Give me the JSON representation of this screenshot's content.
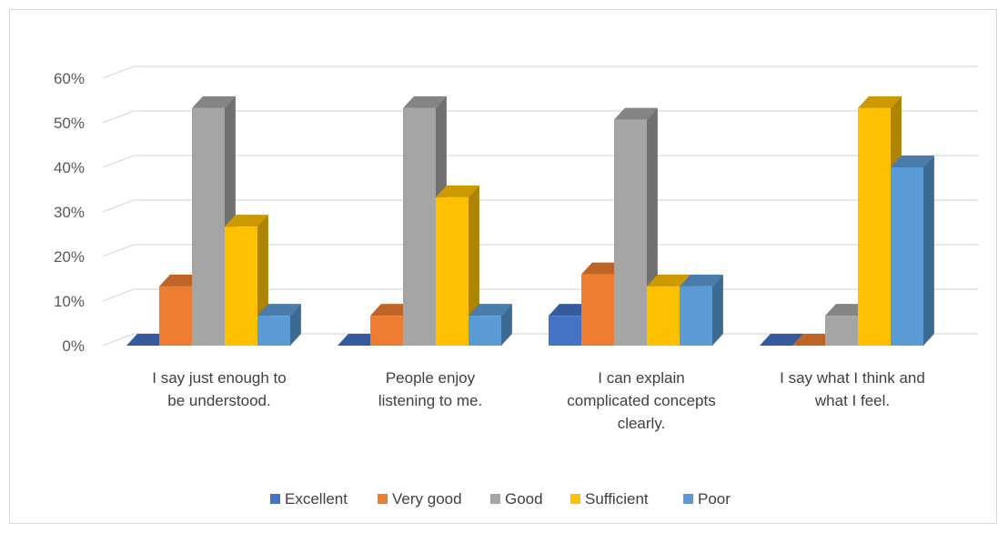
{
  "chart_data": {
    "type": "bar",
    "title": "",
    "xlabel": "",
    "ylabel": "",
    "ylim": [
      0,
      0.6
    ],
    "y_ticks": [
      "0%",
      "10%",
      "20%",
      "30%",
      "40%",
      "50%",
      "60%"
    ],
    "grid": true,
    "legend_position": "bottom",
    "categories": [
      [
        "I say just enough to",
        "be understood."
      ],
      [
        "People enjoy",
        "listening to me."
      ],
      [
        "I can explain",
        "complicated concepts",
        "clearly."
      ],
      [
        "I say what I think and",
        "what I feel."
      ]
    ],
    "series": [
      {
        "name": "Excellent",
        "color": "#4472c4",
        "values": [
          0,
          0,
          0.067,
          0
        ]
      },
      {
        "name": "Very good",
        "color": "#ed7d31",
        "values": [
          0.133,
          0.067,
          0.16,
          0
        ]
      },
      {
        "name": "Good",
        "color": "#a5a5a5",
        "values": [
          0.533,
          0.533,
          0.507,
          0.067
        ]
      },
      {
        "name": "Sufficient",
        "color": "#ffc000",
        "values": [
          0.267,
          0.333,
          0.133,
          0.533
        ]
      },
      {
        "name": "Poor",
        "color": "#5b9bd5",
        "values": [
          0.067,
          0.067,
          0.133,
          0.4
        ]
      }
    ]
  }
}
